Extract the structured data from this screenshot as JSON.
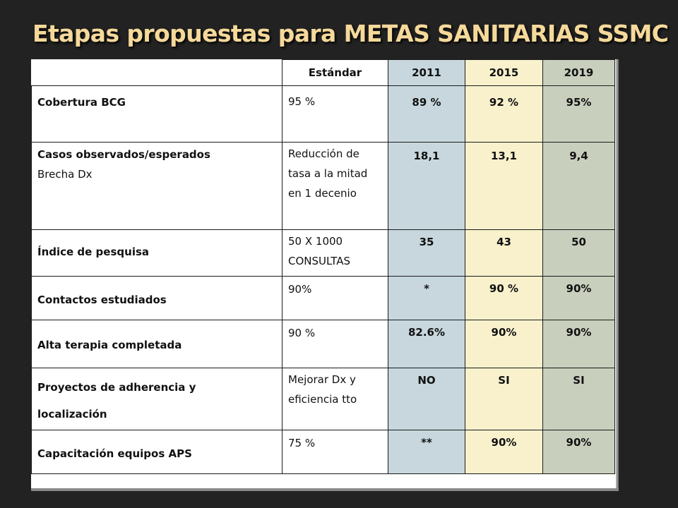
{
  "slide": {
    "title": "Etapas propuestas para METAS SANITARIAS SSMC"
  },
  "table": {
    "headers": {
      "indicator": "",
      "standard": "Estándar",
      "y2011": "2011",
      "y2015": "2015",
      "y2019": "2019"
    },
    "rows": [
      {
        "indicator": "Cobertura BCG",
        "indicator_sub": "",
        "standard": "95 %",
        "y2011": "89 %",
        "y2015": "92 %",
        "y2019": "95%"
      },
      {
        "indicator": "Casos observados/esperados",
        "indicator_sub": "Brecha Dx",
        "standard": "Reducción de tasa a la mitad en 1 decenio",
        "y2011": "18,1",
        "y2015": "13,1",
        "y2019": "9,4"
      },
      {
        "indicator": "Índice de pesquisa",
        "indicator_sub": "",
        "standard": "50 X 1000 CONSULTAS",
        "y2011": "35",
        "y2015": "43",
        "y2019": "50"
      },
      {
        "indicator": "Contactos estudiados",
        "indicator_sub": "",
        "standard": "90%",
        "y2011": "*",
        "y2015": "90 %",
        "y2019": "90%"
      },
      {
        "indicator": "Alta terapia completada",
        "indicator_sub": "",
        "standard": "90 %",
        "y2011": "82.6%",
        "y2015": "90%",
        "y2019": "90%"
      },
      {
        "indicator": "Proyectos de adherencia y localización",
        "indicator_sub": "",
        "standard": "Mejorar Dx y eficiencia tto",
        "y2011": "NO",
        "y2015": "SI",
        "y2019": "SI"
      },
      {
        "indicator": "Capacitación equipos APS",
        "indicator_sub": "",
        "standard": "75 %",
        "y2011": "**",
        "y2015": "90%",
        "y2019": "90%"
      }
    ]
  },
  "colors": {
    "background": "#222222",
    "title": "#f5d99a",
    "col_2011": "#c7d7dd",
    "col_2015": "#f8f1cc",
    "col_2019": "#c9cfbd"
  }
}
